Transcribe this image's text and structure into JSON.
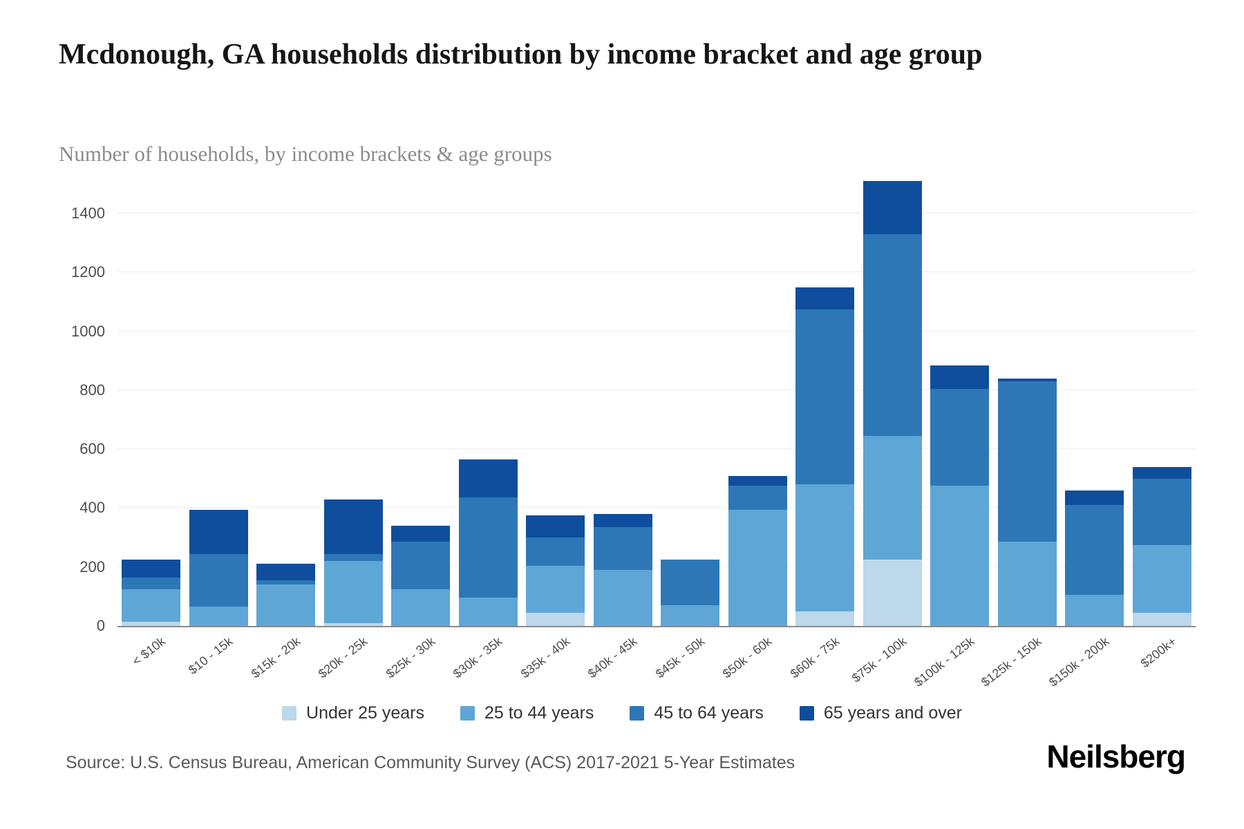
{
  "header": {
    "title": "Mcdonough, GA households distribution by income bracket and age group",
    "subtitle": "Number of households, by income brackets & age groups"
  },
  "footer": {
    "source": "Source: U.S. Census Bureau, American Community Survey (ACS) 2017-2021 5-Year Estimates",
    "brand": "Neilsberg"
  },
  "chart_data": {
    "type": "bar",
    "stacked": true,
    "title": "Mcdonough, GA households distribution by income bracket and age group",
    "subtitle": "Number of households, by income brackets & age groups",
    "xlabel": "",
    "ylabel": "",
    "grid": true,
    "legend_position": "bottom",
    "ylim": [
      0,
      1510
    ],
    "yticks": [
      0,
      200,
      400,
      600,
      800,
      1000,
      1200,
      1400
    ],
    "categories": [
      "< $10k",
      "$10 - 15k",
      "$15k - 20k",
      "$20k - 25k",
      "$25k - 30k",
      "$30k - 35k",
      "$35k - 40k",
      "$40k - 45k",
      "$45k - 50k",
      "$50k - 60k",
      "$60k - 75k",
      "$75k - 100k",
      "$100k - 125k",
      "$125k - 150k",
      "$150k - 200k",
      "$200k+"
    ],
    "series": [
      {
        "name": "Under 25 years",
        "color": "#bcd8ea",
        "values": [
          15,
          0,
          0,
          10,
          0,
          0,
          45,
          0,
          0,
          0,
          50,
          225,
          0,
          0,
          0,
          45
        ]
      },
      {
        "name": "25 to 44 years",
        "color": "#5ea6d6",
        "values": [
          110,
          65,
          140,
          210,
          125,
          95,
          160,
          190,
          70,
          395,
          430,
          420,
          475,
          285,
          105,
          230
        ]
      },
      {
        "name": "45 to 64 years",
        "color": "#2d77b7",
        "values": [
          40,
          180,
          15,
          25,
          160,
          340,
          95,
          145,
          155,
          80,
          595,
          685,
          330,
          545,
          305,
          225
        ]
      },
      {
        "name": "65 years and over",
        "color": "#0f4e9c",
        "values": [
          60,
          150,
          55,
          185,
          55,
          130,
          75,
          45,
          0,
          35,
          75,
          180,
          80,
          10,
          50,
          40
        ]
      }
    ]
  }
}
